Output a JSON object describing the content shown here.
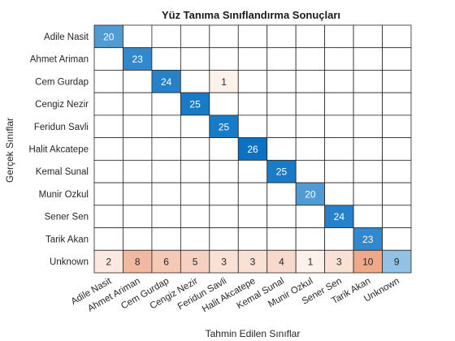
{
  "chart_data": {
    "type": "heatmap",
    "title": "Yüz Tanıma Sınıflandırma Sonuçları",
    "xlabel": "Tahmin Edilen Sınıflar",
    "ylabel": "Gerçek Sınıflar",
    "row_labels": [
      "Adile Nasit",
      "Ahmet Ariman",
      "Cem Gurdap",
      "Cengiz Nezir",
      "Feridun Savli",
      "Halit Akcatepe",
      "Kemal Sunal",
      "Munir Ozkul",
      "Sener Sen",
      "Tarik Akan",
      "Unknown"
    ],
    "col_labels": [
      "Adile Nasit",
      "Ahmet Ariman",
      "Cem Gurdap",
      "Cengiz Nezir",
      "Feridun Savli",
      "Halit Akcatepe",
      "Kemal Sunal",
      "Munir Ozkul",
      "Sener Sen",
      "Tarik Akan",
      "Unknown"
    ],
    "matrix": [
      [
        20,
        0,
        0,
        0,
        0,
        0,
        0,
        0,
        0,
        0,
        0
      ],
      [
        0,
        23,
        0,
        0,
        0,
        0,
        0,
        0,
        0,
        0,
        0
      ],
      [
        0,
        0,
        24,
        0,
        1,
        0,
        0,
        0,
        0,
        0,
        0
      ],
      [
        0,
        0,
        0,
        25,
        0,
        0,
        0,
        0,
        0,
        0,
        0
      ],
      [
        0,
        0,
        0,
        0,
        25,
        0,
        0,
        0,
        0,
        0,
        0
      ],
      [
        0,
        0,
        0,
        0,
        0,
        26,
        0,
        0,
        0,
        0,
        0
      ],
      [
        0,
        0,
        0,
        0,
        0,
        0,
        25,
        0,
        0,
        0,
        0
      ],
      [
        0,
        0,
        0,
        0,
        0,
        0,
        0,
        20,
        0,
        0,
        0
      ],
      [
        0,
        0,
        0,
        0,
        0,
        0,
        0,
        0,
        24,
        0,
        0
      ],
      [
        0,
        0,
        0,
        0,
        0,
        0,
        0,
        0,
        0,
        23,
        0
      ],
      [
        2,
        8,
        6,
        5,
        3,
        3,
        4,
        1,
        3,
        10,
        9
      ]
    ],
    "colors": {
      "correct_max": "#0b72c3",
      "correct_min": "#9dc7e6",
      "error_max": "#eea98b",
      "error_min": "#fdf1ec",
      "grid": "#262626",
      "empty": "#ffffff"
    }
  }
}
